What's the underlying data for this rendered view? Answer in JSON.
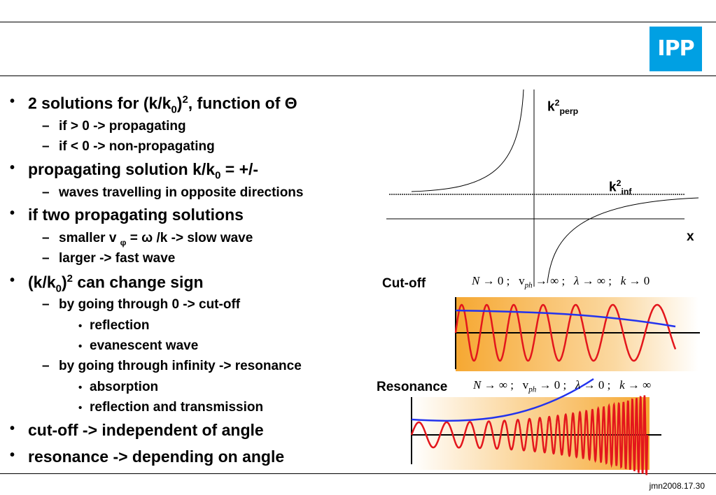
{
  "logo": {
    "text": "IPP",
    "color": "#00a0e3"
  },
  "bullets": [
    {
      "level": 1,
      "html": "2 solutions for (k/k<sub>0</sub>)<sup>2</sup>, function of Θ"
    },
    {
      "level": 2,
      "html": "if &gt; 0 -&gt; propagating"
    },
    {
      "level": 2,
      "html": "if &lt; 0 -&gt; non-propagating"
    },
    {
      "level": 1,
      "html": "propagating solution k/k<sub>0</sub> = +/-"
    },
    {
      "level": 2,
      "html": "waves travelling in opposite directions"
    },
    {
      "level": 1,
      "html": "if two propagating solutions"
    },
    {
      "level": 2,
      "html": "smaller v <sub>φ</sub> = ω /k -&gt; slow wave"
    },
    {
      "level": 2,
      "html": "larger -&gt; fast wave"
    },
    {
      "level": 1,
      "html": " (k/k<sub>0</sub>)<sup>2</sup> can change sign"
    },
    {
      "level": 2,
      "html": "by going through 0  -&gt;  cut-off"
    },
    {
      "level": 3,
      "html": "reflection"
    },
    {
      "level": 3,
      "html": "evanescent wave"
    },
    {
      "level": 2,
      "html": "by going through  infinity -&gt; resonance"
    },
    {
      "level": 3,
      "html": "absorption"
    },
    {
      "level": 3,
      "html": "reflection and transmission"
    },
    {
      "level": 1,
      "html": "cut-off -&gt; independent of angle"
    },
    {
      "level": 1,
      "html": "resonance -&gt; depending on angle"
    }
  ],
  "diagram": {
    "k2perp_label": "k<sup>2</sup><sub>perp</sub>",
    "k2inf_label": "k<sup>2</sup><sub>inf</sub>",
    "x_label": "x"
  },
  "cutoff": {
    "label": "Cut-off",
    "formula": "<i>N</i> → 0 ;&nbsp;&nbsp; v<sub><i>ph</i></sub> → ∞ ;&nbsp;&nbsp; <i>λ</i> → ∞ ;&nbsp;&nbsp; <i>k</i> → 0"
  },
  "resonance": {
    "label": "Resonance",
    "formula": "<i>N</i> → ∞ ;&nbsp;&nbsp; v<sub><i>ph</i></sub> → 0 ;&nbsp;&nbsp; <i>λ</i> → 0 ;&nbsp;&nbsp; <i>k</i> → ∞"
  },
  "footer": "jmn2008.17.30"
}
